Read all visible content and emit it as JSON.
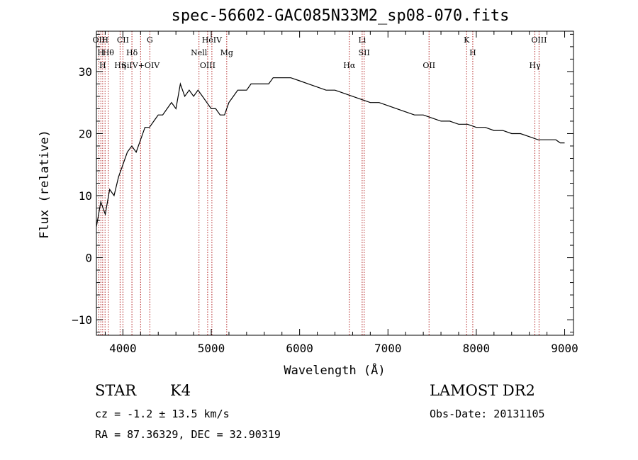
{
  "chart_data": {
    "type": "line",
    "title": "spec-56602-GAC085N33M2_sp08-070.fits",
    "xlabel": "Wavelength (Å)",
    "ylabel": "Flux (relative)",
    "xlim": [
      3700,
      9100
    ],
    "ylim": [
      -12.5,
      36.5
    ],
    "xticks": [
      4000,
      5000,
      6000,
      7000,
      8000,
      9000
    ],
    "yticks": [
      -10,
      0,
      10,
      20,
      30
    ],
    "grid": false,
    "line_color": "#000000",
    "marker_color": "#b22222",
    "series": [
      {
        "x": [
          3700,
          3750,
          3800,
          3850,
          3900,
          3950,
          4000,
          4050,
          4100,
          4150,
          4200,
          4250,
          4300,
          4350,
          4400,
          4450,
          4500,
          4550,
          4600,
          4650,
          4700,
          4750,
          4800,
          4850,
          4900,
          4950,
          5000,
          5050,
          5100,
          5150,
          5200,
          5250,
          5300,
          5350,
          5400,
          5450,
          5500,
          5550,
          5600,
          5650,
          5700,
          5800,
          5900,
          6000,
          6100,
          6200,
          6300,
          6400,
          6500,
          6600,
          6700,
          6800,
          6900,
          7000,
          7100,
          7200,
          7300,
          7400,
          7500,
          7600,
          7700,
          7800,
          7900,
          8000,
          8100,
          8200,
          8300,
          8400,
          8500,
          8600,
          8700,
          8800,
          8900,
          8950,
          9000
        ],
        "y": [
          5,
          9,
          7,
          11,
          10,
          13,
          15,
          17,
          18,
          17,
          19,
          21,
          21,
          22,
          23,
          23,
          24,
          25,
          24,
          28,
          26,
          27,
          26,
          27,
          26,
          25,
          24,
          24,
          23,
          23,
          25,
          26,
          27,
          27,
          27,
          28,
          28,
          28,
          28,
          28,
          29,
          29,
          29,
          28.5,
          28,
          27.5,
          27,
          27,
          26.5,
          26,
          25.5,
          25,
          25,
          24.5,
          24,
          23.5,
          23,
          23,
          22.5,
          22,
          22,
          21.5,
          21.5,
          21,
          21,
          20.5,
          20.5,
          20,
          20,
          19.5,
          19,
          19,
          19,
          18.5,
          18.5
        ]
      }
    ],
    "line_markers": [
      {
        "wavelength": 3727,
        "label": "OII"
      },
      {
        "wavelength": 3750,
        "label": "H"
      },
      {
        "wavelength": 3771,
        "label": "H"
      },
      {
        "wavelength": 3798,
        "label": "H"
      },
      {
        "wavelength": 3835,
        "label": "Hθ"
      },
      {
        "wavelength": 3968,
        "label": "Hη"
      },
      {
        "wavelength": 4000,
        "label": "CII"
      },
      {
        "wavelength": 4102,
        "label": "Hδ"
      },
      {
        "wavelength": 4200,
        "label": "SiIV+OIV"
      },
      {
        "wavelength": 4305,
        "label": "G"
      },
      {
        "wavelength": 4861,
        "label": "Nell"
      },
      {
        "wavelength": 4959,
        "label": "OIII"
      },
      {
        "wavelength": 5007,
        "label": "HeIV"
      },
      {
        "wavelength": 5175,
        "label": "Mg"
      },
      {
        "wavelength": 6563,
        "label": "Hα"
      },
      {
        "wavelength": 6708,
        "label": "Li"
      },
      {
        "wavelength": 6731,
        "label": "SII"
      },
      {
        "wavelength": 7465,
        "label": "OII"
      },
      {
        "wavelength": 7890,
        "label": "K"
      },
      {
        "wavelength": 7960,
        "label": "H"
      },
      {
        "wavelength": 8663,
        "label": "Hγ"
      },
      {
        "wavelength": 8710,
        "label": "OIII"
      }
    ]
  },
  "footer": {
    "class_label": "STAR",
    "subclass_label": "K4",
    "survey": "LAMOST DR2",
    "redshift": "cz = -1.2 ± 13.5 km/s",
    "obs_date": "Obs-Date: 20131105",
    "coords": "RA =  87.36329, DEC =  32.90319"
  }
}
